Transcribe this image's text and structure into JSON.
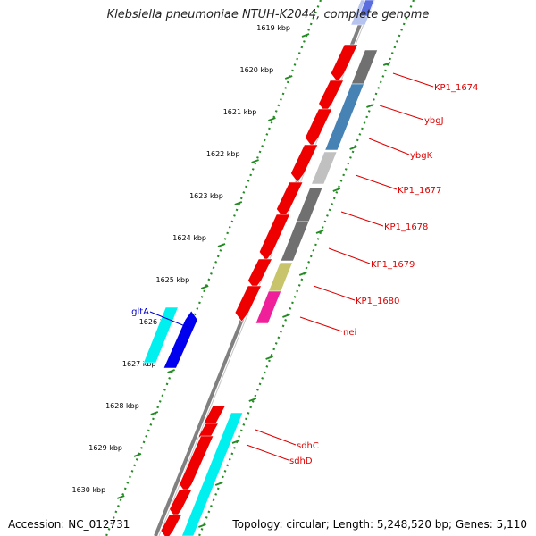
{
  "map": {
    "title": "Klebsiella pneumoniae NTUH-K2044, complete genome",
    "accession_text": "Accession: NC_012731",
    "stats_text": "Topology: circular; Length: 5,248,520 bp; Genes: 5,110",
    "ticks": [
      {
        "label": "1619 kbp"
      },
      {
        "label": "1620 kbp"
      },
      {
        "label": "1621 kbp"
      },
      {
        "label": "1622 kbp"
      },
      {
        "label": "1623 kbp"
      },
      {
        "label": "1624 kbp"
      },
      {
        "label": "1625 kbp"
      },
      {
        "label": "1626 kbp"
      },
      {
        "label": "1627 kbp"
      },
      {
        "label": "1628 kbp"
      },
      {
        "label": "1629 kbp"
      },
      {
        "label": "1630 kbp"
      }
    ],
    "right_genes": [
      {
        "label": "KP1_1674",
        "color": "#dd0000"
      },
      {
        "label": "ybgJ",
        "color": "#dd0000"
      },
      {
        "label": "ybgK",
        "color": "#dd0000"
      },
      {
        "label": "KP1_1677",
        "color": "#dd0000"
      },
      {
        "label": "KP1_1678",
        "color": "#dd0000"
      },
      {
        "label": "KP1_1679",
        "color": "#dd0000"
      },
      {
        "label": "KP1_1680",
        "color": "#dd0000"
      },
      {
        "label": "nei",
        "color": "#dd0000"
      },
      {
        "label": "sdhC",
        "color": "#dd0000"
      },
      {
        "label": "sdhD",
        "color": "#dd0000"
      }
    ],
    "left_genes": [
      {
        "label": "gltA",
        "color": "#0000cc"
      }
    ],
    "colors": {
      "backbone": "#808080",
      "tick": "#228B22",
      "cds_red": "#ee0000",
      "cyan": "#00f0f0",
      "blue": "#0000ee",
      "dark_gray": "#707070",
      "steel_blue": "#4682b4",
      "light_gray": "#c0c0c0",
      "olive": "#c8c46c",
      "magenta": "#f0209a",
      "lavender": "#b8c4f0"
    }
  }
}
